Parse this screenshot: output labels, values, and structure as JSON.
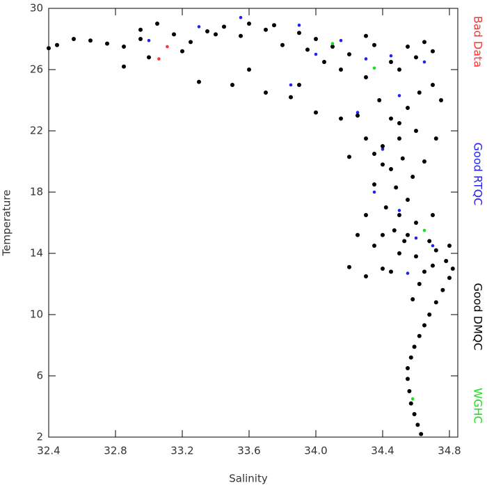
{
  "chart_data": {
    "type": "scatter",
    "x_label": "Salinity",
    "y_label": "Temperature",
    "xlim": [
      32.4,
      34.85
    ],
    "ylim": [
      2,
      30
    ],
    "xticks": [
      32.4,
      32.8,
      33.2,
      33.6,
      {
        "value": 34.0,
        "label": "34.0"
      },
      34.4,
      34.8
    ],
    "yticks": [
      2,
      6,
      10,
      14,
      18,
      22,
      26,
      30
    ],
    "series": [
      {
        "name": "Bad Data",
        "color": "#ff3333",
        "x": [
          33.06,
          33.11
        ],
        "values": [
          26.7,
          27.5
        ]
      },
      {
        "name": "Good RTQC",
        "color": "#2222ee",
        "x": [
          33.55,
          33.9,
          34.1,
          34.3,
          34.45,
          34.25,
          34.4,
          34.35,
          34.5,
          34.6,
          34.7,
          34.55,
          33.3,
          33.0,
          34.0,
          34.6,
          34.65,
          33.85,
          34.15,
          34.5
        ],
        "values": [
          29.4,
          28.9,
          27.5,
          26.7,
          26.9,
          23.2,
          20.8,
          18,
          16.8,
          15,
          14.5,
          12.7,
          28.8,
          27.9,
          27.0,
          22,
          26.5,
          25,
          27.9,
          24.3
        ]
      },
      {
        "name": "Good DMQC",
        "color": "#000000",
        "x": [
          34.63,
          34.61,
          34.59,
          34.57,
          34.56,
          34.55,
          34.55,
          34.57,
          34.59,
          34.62,
          34.65,
          34.68,
          34.72,
          34.76,
          34.8,
          34.82,
          34.78,
          34.7,
          34.65,
          34.6,
          34.72,
          34.68,
          34.55,
          34.6,
          34.5,
          34.42,
          34.55,
          34.48,
          34.58,
          34.45,
          34.52,
          34.4,
          34.5,
          34.6,
          34.45,
          34.55,
          34.38,
          34.62,
          34.7,
          34.3,
          34.5,
          34.7,
          34.65,
          34.45,
          34.2,
          34.1,
          34.0,
          33.9,
          33.8,
          33.7,
          33.6,
          33.55,
          33.45,
          33.35,
          33.25,
          33.15,
          33.05,
          32.95,
          32.85,
          32.75,
          32.65,
          32.55,
          32.45,
          32.4,
          32.85,
          33.0,
          33.3,
          33.5,
          33.6,
          33.7,
          33.85,
          34.0,
          34.15,
          34.2,
          34.25,
          34.2,
          34.3,
          34.35,
          34.4,
          34.45,
          34.5,
          34.3,
          34.35,
          34.4,
          34.25,
          34.3,
          33.95,
          34.05,
          34.15,
          34.35,
          34.55,
          34.6,
          34.75,
          34.72,
          34.65,
          34.7,
          34.8,
          34.62,
          34.58,
          34.53,
          34.47,
          34.4,
          33.9,
          33.4,
          33.2,
          32.95,
          33.75,
          34.3,
          34.5,
          34.35
        ],
        "values": [
          2.2,
          2.8,
          3.5,
          4.2,
          5,
          5.8,
          6.5,
          7.2,
          7.9,
          8.6,
          9.3,
          10,
          10.8,
          11.6,
          12.4,
          13,
          13.5,
          13.2,
          12.8,
          13.8,
          14.2,
          14.8,
          15.2,
          16,
          16.5,
          17,
          17.5,
          18.3,
          19,
          19.5,
          20.2,
          21,
          21.5,
          22,
          22.8,
          23.5,
          24,
          24.5,
          25,
          25.5,
          26,
          27.2,
          27.8,
          26.5,
          27,
          27.5,
          28,
          28.4,
          27.6,
          28.6,
          29,
          28.2,
          28.8,
          28.5,
          27.8,
          28.3,
          29,
          28,
          27.5,
          27.7,
          27.9,
          28,
          27.6,
          27.4,
          26.2,
          26.8,
          25.2,
          25,
          26,
          24.5,
          24.2,
          23.2,
          22.8,
          20.3,
          15.2,
          13.1,
          12.5,
          14.5,
          13,
          12.8,
          14,
          16.5,
          18.5,
          19.8,
          23,
          21.5,
          27.3,
          26.5,
          26,
          27.6,
          27.5,
          26.8,
          24,
          21.5,
          20,
          16.5,
          14.5,
          12,
          11,
          14.8,
          15.5,
          15.2,
          25,
          28.3,
          27.2,
          28.6,
          28.9,
          28.2,
          22.5,
          20.5
        ]
      },
      {
        "name": "WGHC",
        "color": "#22dd22",
        "x": [
          34.35,
          34.1,
          34.58,
          34.65
        ],
        "values": [
          26.1,
          27.7,
          4.5,
          15.5
        ]
      }
    ]
  }
}
